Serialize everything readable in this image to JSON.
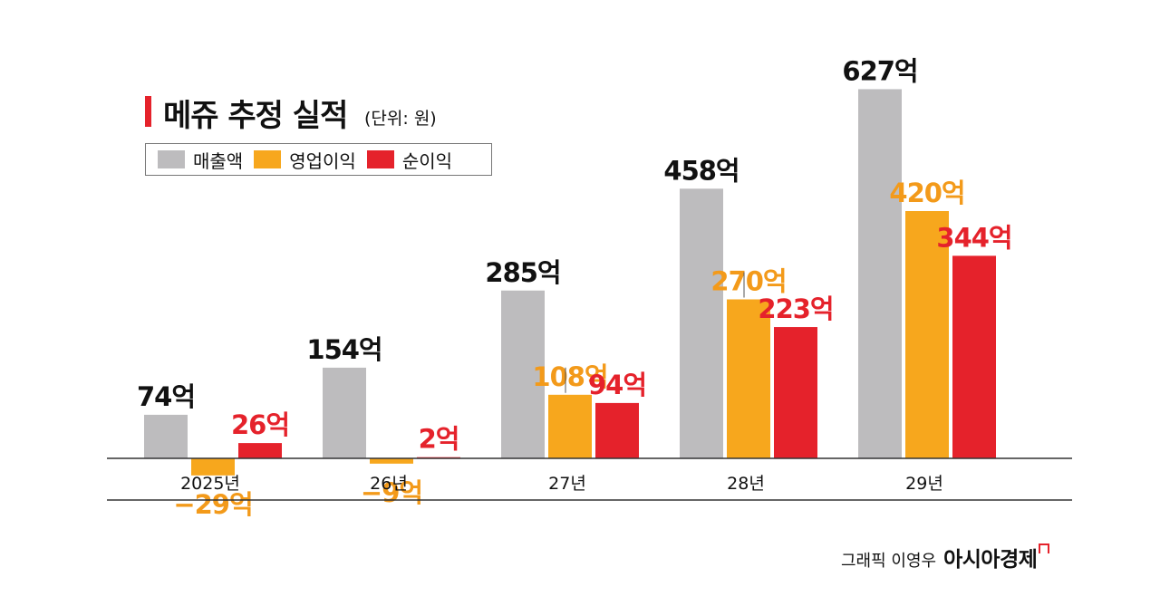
{
  "chart_data": {
    "type": "bar",
    "title": "메쥬 추정 실적",
    "unit": "(단위: 원)",
    "categories": [
      "2025년",
      "26년",
      "27년",
      "28년",
      "29년"
    ],
    "series": [
      {
        "name": "매출액",
        "color": "#bdbcbe",
        "values": [
          74,
          154,
          285,
          458,
          627
        ],
        "labels": [
          "74억",
          "154억",
          "285억",
          "458억",
          "627억"
        ],
        "label_color": "#111111"
      },
      {
        "name": "영업이익",
        "color": "#f7a71d",
        "values": [
          -29,
          -9,
          108,
          270,
          420
        ],
        "labels": [
          "−29억",
          "−9억",
          "108억",
          "270억",
          "420억"
        ],
        "label_color": "#f39a1a"
      },
      {
        "name": "순이익",
        "color": "#e5222b",
        "values": [
          26,
          2,
          94,
          223,
          344
        ],
        "labels": [
          "26억",
          "2억",
          "94억",
          "223억",
          "344억"
        ],
        "label_color": "#e5222b"
      }
    ],
    "ylim": [
      -40,
      680
    ],
    "legend_position": "top-left",
    "grid": false
  },
  "credit": {
    "author": "그래픽 이영우",
    "brand": "아시아경제"
  }
}
